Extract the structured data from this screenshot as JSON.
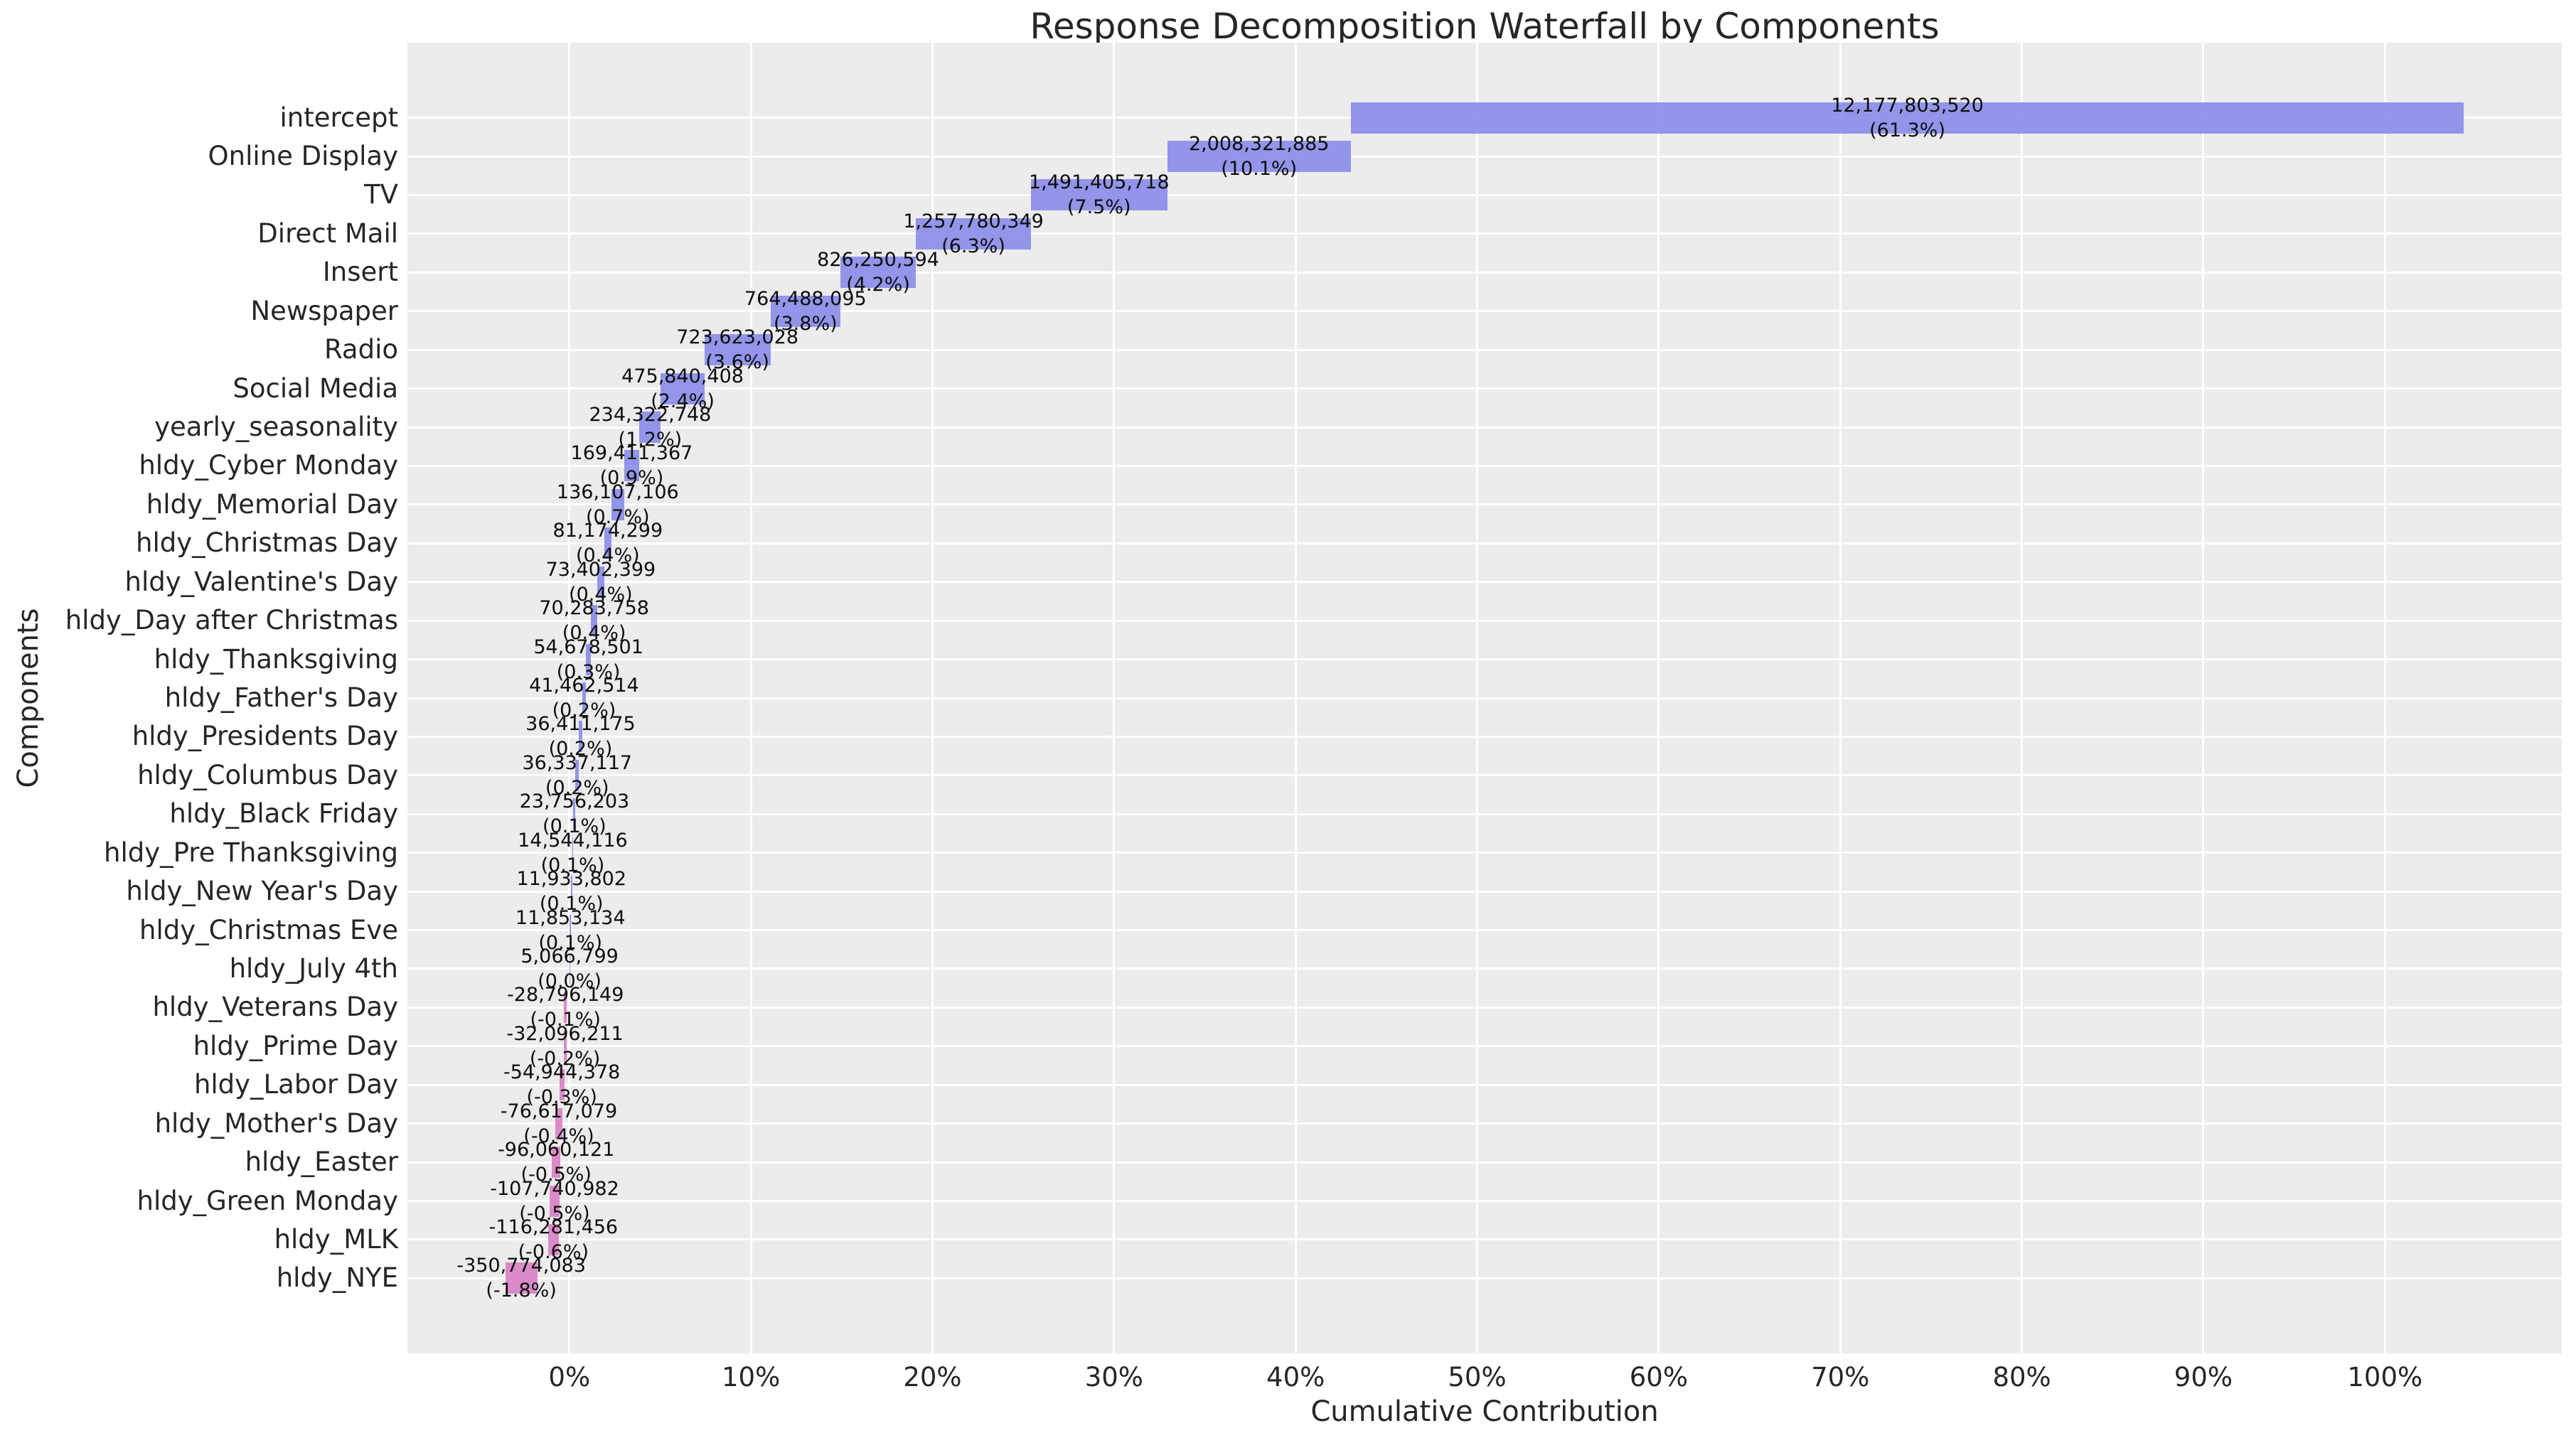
{
  "chart_data": {
    "type": "bar",
    "variant": "horizontal-waterfall",
    "title": "Response Decomposition Waterfall by Components",
    "xlabel": "Cumulative Contribution",
    "ylabel": "Components",
    "legend": "none",
    "grid": true,
    "xlim": [
      -8.92,
      109.74
    ],
    "x_ticks": [
      {
        "value": 0,
        "label": "0%"
      },
      {
        "value": 10,
        "label": "10%"
      },
      {
        "value": 20,
        "label": "20%"
      },
      {
        "value": 30,
        "label": "30%"
      },
      {
        "value": 40,
        "label": "40%"
      },
      {
        "value": 50,
        "label": "50%"
      },
      {
        "value": 60,
        "label": "60%"
      },
      {
        "value": 70,
        "label": "70%"
      },
      {
        "value": 80,
        "label": "80%"
      },
      {
        "value": 90,
        "label": "90%"
      },
      {
        "value": 100,
        "label": "100%"
      }
    ],
    "colors": {
      "positive_bar": "#8a8de8",
      "negative_bar": "#d981c5",
      "plot_background": "#ececec",
      "figure_background": "#ffffff",
      "gridline": "#ffffff",
      "text": "#262626",
      "bar_label_text": "#0d0d0d"
    },
    "bars": [
      {
        "label": "intercept",
        "value": 12177803520,
        "value_label": "12,177,803,520",
        "pct_label": "(61.3%)",
        "start": 43.04,
        "end": 104.349,
        "sign": "positive"
      },
      {
        "label": "Online Display",
        "value": 2008321885,
        "value_label": "2,008,321,885",
        "pct_label": "(10.1%)",
        "start": 32.929,
        "end": 43.04,
        "sign": "positive"
      },
      {
        "label": "TV",
        "value": 1491405718,
        "value_label": "1,491,405,718",
        "pct_label": "(7.5%)",
        "start": 25.42,
        "end": 32.929,
        "sign": "positive"
      },
      {
        "label": "Direct Mail",
        "value": 1257780349,
        "value_label": "1,257,780,349",
        "pct_label": "(6.3%)",
        "start": 19.088,
        "end": 25.42,
        "sign": "positive"
      },
      {
        "label": "Insert",
        "value": 826250594,
        "value_label": "826,250,594",
        "pct_label": "(4.2%)",
        "start": 14.928,
        "end": 19.088,
        "sign": "positive"
      },
      {
        "label": "Newspaper",
        "value": 764488095,
        "value_label": "764,488,095",
        "pct_label": "(3.8%)",
        "start": 11.079,
        "end": 14.928,
        "sign": "positive"
      },
      {
        "label": "Radio",
        "value": 723623028,
        "value_label": "723,623,028",
        "pct_label": "(3.6%)",
        "start": 7.436,
        "end": 11.079,
        "sign": "positive"
      },
      {
        "label": "Social Media",
        "value": 475840408,
        "value_label": "475,840,408",
        "pct_label": "(2.4%)",
        "start": 5.04,
        "end": 7.436,
        "sign": "positive"
      },
      {
        "label": "yearly_seasonality",
        "value": 234322748,
        "value_label": "234,322,748",
        "pct_label": "(1.2%)",
        "start": 3.86,
        "end": 5.04,
        "sign": "positive"
      },
      {
        "label": "hldy_Cyber Monday",
        "value": 169411367,
        "value_label": "169,411,367",
        "pct_label": "(0.9%)",
        "start": 3.007,
        "end": 3.86,
        "sign": "positive"
      },
      {
        "label": "hldy_Memorial Day",
        "value": 136107106,
        "value_label": "136,107,106",
        "pct_label": "(0.7%)",
        "start": 2.322,
        "end": 3.007,
        "sign": "positive"
      },
      {
        "label": "hldy_Christmas Day",
        "value": 81174299,
        "value_label": "81,174,299",
        "pct_label": "(0.4%)",
        "start": 1.913,
        "end": 2.322,
        "sign": "positive"
      },
      {
        "label": "hldy_Valentine's Day",
        "value": 73402399,
        "value_label": "73,402,399",
        "pct_label": "(0.4%)",
        "start": 1.543,
        "end": 1.913,
        "sign": "positive"
      },
      {
        "label": "hldy_Day after Christmas",
        "value": 70283758,
        "value_label": "70,283,758",
        "pct_label": "(0.4%)",
        "start": 1.189,
        "end": 1.543,
        "sign": "positive"
      },
      {
        "label": "hldy_Thanksgiving",
        "value": 54678501,
        "value_label": "54,678,501",
        "pct_label": "(0.3%)",
        "start": 0.914,
        "end": 1.189,
        "sign": "positive"
      },
      {
        "label": "hldy_Father's Day",
        "value": 41462514,
        "value_label": "41,462,514",
        "pct_label": "(0.2%)",
        "start": 0.705,
        "end": 0.914,
        "sign": "positive"
      },
      {
        "label": "hldy_Presidents Day",
        "value": 36411175,
        "value_label": "36,411,175",
        "pct_label": "(0.2%)",
        "start": 0.522,
        "end": 0.705,
        "sign": "positive"
      },
      {
        "label": "hldy_Columbus Day",
        "value": 36337117,
        "value_label": "36,337,117",
        "pct_label": "(0.2%)",
        "start": 0.339,
        "end": 0.522,
        "sign": "positive"
      },
      {
        "label": "hldy_Black Friday",
        "value": 23756203,
        "value_label": "23,756,203",
        "pct_label": "(0.1%)",
        "start": 0.219,
        "end": 0.339,
        "sign": "positive"
      },
      {
        "label": "hldy_Pre Thanksgiving",
        "value": 14544116,
        "value_label": "14,544,116",
        "pct_label": "(0.1%)",
        "start": 0.146,
        "end": 0.219,
        "sign": "positive"
      },
      {
        "label": "hldy_New Year's Day",
        "value": 11933802,
        "value_label": "11,933,802",
        "pct_label": "(0.1%)",
        "start": 0.086,
        "end": 0.146,
        "sign": "positive"
      },
      {
        "label": "hldy_Christmas Eve",
        "value": 11853134,
        "value_label": "11,853,134",
        "pct_label": "(0.1%)",
        "start": 0.026,
        "end": 0.086,
        "sign": "positive"
      },
      {
        "label": "hldy_July 4th",
        "value": 5066799,
        "value_label": "5,066,799",
        "pct_label": "(0.0%)",
        "start": 0.0,
        "end": 0.026,
        "sign": "positive"
      },
      {
        "label": "hldy_Veterans Day",
        "value": -28796149,
        "value_label": "-28,796,149",
        "pct_label": "(-0.1%)",
        "start": -0.29,
        "end": -0.145,
        "sign": "negative"
      },
      {
        "label": "hldy_Prime Day",
        "value": -32096211,
        "value_label": "-32,096,211",
        "pct_label": "(-0.2%)",
        "start": -0.324,
        "end": -0.162,
        "sign": "negative"
      },
      {
        "label": "hldy_Labor Day",
        "value": -54944378,
        "value_label": "-54,944,378",
        "pct_label": "(-0.3%)",
        "start": -0.554,
        "end": -0.277,
        "sign": "negative"
      },
      {
        "label": "hldy_Mother's Day",
        "value": -76617079,
        "value_label": "-76,617,079",
        "pct_label": "(-0.4%)",
        "start": -0.772,
        "end": -0.386,
        "sign": "negative"
      },
      {
        "label": "hldy_Easter",
        "value": -96060121,
        "value_label": "-96,060,121",
        "pct_label": "(-0.5%)",
        "start": -0.968,
        "end": -0.484,
        "sign": "negative"
      },
      {
        "label": "hldy_Green Monday",
        "value": -107740982,
        "value_label": "-107,740,982",
        "pct_label": "(-0.5%)",
        "start": -1.084,
        "end": -0.542,
        "sign": "negative"
      },
      {
        "label": "hldy_MLK",
        "value": -116281456,
        "value_label": "-116,281,456",
        "pct_label": "(-0.6%)",
        "start": -1.17,
        "end": -0.585,
        "sign": "negative"
      },
      {
        "label": "hldy_NYE",
        "value": -350774083,
        "value_label": "-350,774,083",
        "pct_label": "(-1.8%)",
        "start": -3.532,
        "end": -1.766,
        "sign": "negative"
      }
    ]
  }
}
